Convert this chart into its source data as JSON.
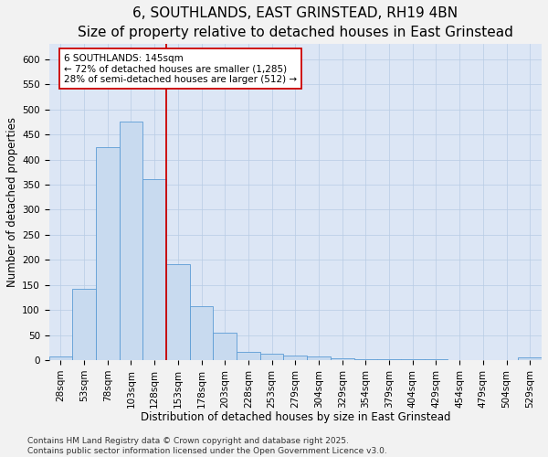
{
  "title1": "6, SOUTHLANDS, EAST GRINSTEAD, RH19 4BN",
  "title2": "Size of property relative to detached houses in East Grinstead",
  "xlabel": "Distribution of detached houses by size in East Grinstead",
  "ylabel": "Number of detached properties",
  "categories": [
    "28sqm",
    "53sqm",
    "78sqm",
    "103sqm",
    "128sqm",
    "153sqm",
    "178sqm",
    "203sqm",
    "228sqm",
    "253sqm",
    "279sqm",
    "304sqm",
    "329sqm",
    "354sqm",
    "379sqm",
    "404sqm",
    "429sqm",
    "454sqm",
    "479sqm",
    "504sqm",
    "529sqm"
  ],
  "values": [
    8,
    143,
    425,
    475,
    360,
    192,
    107,
    55,
    17,
    13,
    10,
    8,
    3,
    2,
    2,
    1,
    1,
    0,
    0,
    0,
    5
  ],
  "bar_color": "#c8daef",
  "bar_edge_color": "#5b9bd5",
  "vline_x": 4.5,
  "vline_color": "#cc0000",
  "annotation_title": "6 SOUTHLANDS: 145sqm",
  "annotation_line1": "← 72% of detached houses are smaller (1,285)",
  "annotation_line2": "28% of semi-detached houses are larger (512) →",
  "annotation_box_color": "#ffffff",
  "annotation_box_edge": "#cc0000",
  "ylim": [
    0,
    630
  ],
  "yticks": [
    0,
    50,
    100,
    150,
    200,
    250,
    300,
    350,
    400,
    450,
    500,
    550,
    600
  ],
  "footnote1": "Contains HM Land Registry data © Crown copyright and database right 2025.",
  "footnote2": "Contains public sector information licensed under the Open Government Licence v3.0.",
  "fig_bg_color": "#f2f2f2",
  "plot_bg_color": "#dce6f5",
  "grid_color": "#b8cce4",
  "title_fontsize": 11,
  "subtitle_fontsize": 9,
  "axis_label_fontsize": 8.5,
  "tick_fontsize": 7.5,
  "annot_fontsize": 7.5,
  "footnote_fontsize": 6.5
}
